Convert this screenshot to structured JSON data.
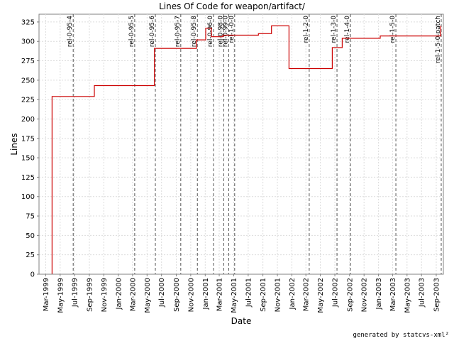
{
  "chart_data": {
    "type": "line",
    "step": true,
    "title": "Lines Of Code for weapon/artifact/",
    "xlabel": "Date",
    "ylabel": "Lines",
    "x_range": [
      "1999-02-01",
      "2003-10-01"
    ],
    "ylim": [
      0,
      335
    ],
    "y_ticks": [
      0,
      25,
      50,
      75,
      100,
      125,
      150,
      175,
      200,
      225,
      250,
      275,
      300,
      325
    ],
    "x_ticks": [
      "Mar-1999",
      "May-1999",
      "Jul-1999",
      "Sep-1999",
      "Nov-1999",
      "Jan-2000",
      "Mar-2000",
      "May-2000",
      "Jul-2000",
      "Sep-2000",
      "Nov-2000",
      "Jan-2001",
      "Mar-2001",
      "May-2001",
      "Jul-2001",
      "Sep-2001",
      "Nov-2001",
      "Jan-2002",
      "Mar-2002",
      "May-2002",
      "Jul-2002",
      "Sep-2002",
      "Nov-2002",
      "Jan-2003",
      "Mar-2003",
      "May-2003",
      "Jul-2003",
      "Sep-2003"
    ],
    "grid": true,
    "series": [
      {
        "name": "",
        "color": "#cc0000",
        "points": [
          [
            "1999-03-28",
            0
          ],
          [
            "1999-03-28",
            229
          ],
          [
            "1999-09-22",
            229
          ],
          [
            "1999-09-22",
            243
          ],
          [
            "2000-06-01",
            243
          ],
          [
            "2000-06-01",
            291
          ],
          [
            "2000-11-25",
            291
          ],
          [
            "2000-11-25",
            302
          ],
          [
            "2001-01-03",
            302
          ],
          [
            "2001-01-03",
            317
          ],
          [
            "2001-01-27",
            317
          ],
          [
            "2001-01-27",
            306
          ],
          [
            "2001-03-16",
            306
          ],
          [
            "2001-03-16",
            308
          ],
          [
            "2001-08-13",
            308
          ],
          [
            "2001-08-13",
            310
          ],
          [
            "2001-10-07",
            310
          ],
          [
            "2001-10-07",
            320
          ],
          [
            "2001-12-20",
            320
          ],
          [
            "2001-12-20",
            265
          ],
          [
            "2002-06-20",
            265
          ],
          [
            "2002-06-20",
            292
          ],
          [
            "2002-08-01",
            292
          ],
          [
            "2002-08-01",
            304
          ],
          [
            "2003-01-08",
            304
          ],
          [
            "2003-01-08",
            307
          ],
          [
            "2003-09-20",
            307
          ],
          [
            "2003-09-20",
            320
          ]
        ]
      }
    ],
    "markers": [
      {
        "label": "rel-0-95-4",
        "date": "1999-06-25"
      },
      {
        "label": "rel-0-95-5",
        "date": "2000-03-10"
      },
      {
        "label": "rel-0-95-6",
        "date": "2000-06-05"
      },
      {
        "label": "rel-0-95-7",
        "date": "2000-09-20"
      },
      {
        "label": "rel-0-95-8",
        "date": "2000-11-29"
      },
      {
        "label": "rel-0-96-0",
        "date": "2001-02-05"
      },
      {
        "label": "rel-0-98-0",
        "date": "2001-03-20"
      },
      {
        "label": "rel-0-99-0",
        "date": "2001-04-10"
      },
      {
        "label": "rel-1-0-0",
        "date": "2001-05-05"
      },
      {
        "label": "rel-1-2-0",
        "date": "2002-03-15"
      },
      {
        "label": "rel-1-3-0",
        "date": "2002-07-10"
      },
      {
        "label": "rel-1-4-0",
        "date": "2002-09-05"
      },
      {
        "label": "rel-1-5-0",
        "date": "2003-03-15"
      },
      {
        "label": "rel-1-5-0-patch",
        "date": "2003-09-22"
      }
    ]
  },
  "footer": "generated by statcvs-xml²"
}
